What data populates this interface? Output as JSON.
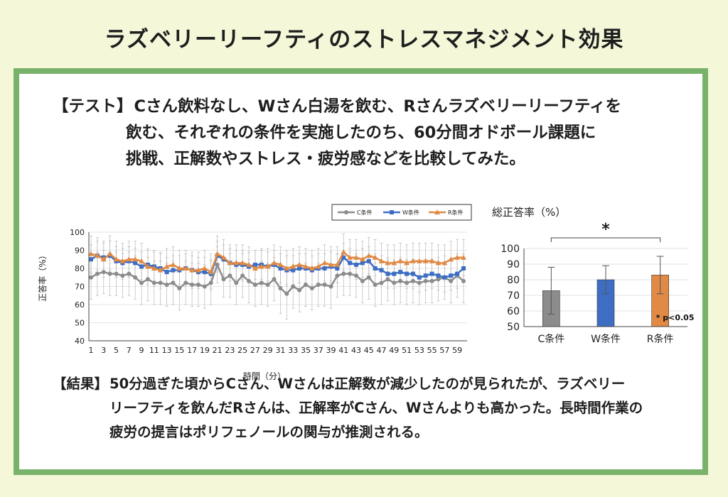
{
  "title": "ラズベリーリーフティのストレスマネジメント効果",
  "test": {
    "label": "【テスト】",
    "lines": [
      "Cさん飲料なし、Wさん白湯を飲む、Rさんラズベリーリーフティを",
      "飲む、それぞれの条件を実施したのち、60分間オドボール課題に",
      "挑戦、正解数やストレス・疲労感などを比較してみた。"
    ]
  },
  "result": {
    "label": "【結果】",
    "lines": [
      "50分過ぎた頃からCさん、Wさんは正解数が減少したのが見られたが、ラズベリー",
      "リーフティを飲んだRさんは、正解率がCさん、Wさんよりも高かった。長時間作業の",
      "疲労の提言はポリフェノールの関与が推測される。"
    ]
  },
  "colors": {
    "C": "#8c8c8c",
    "W": "#3e6ec4",
    "R": "#e08a45",
    "frame": "#79b36b",
    "background": "#f4f8d8"
  },
  "chart_data": [
    {
      "type": "line",
      "ylabel": "正答率（%）",
      "xlabel": "時間（分）",
      "ylim": [
        40,
        100
      ],
      "yticks": [
        40,
        50,
        60,
        70,
        80,
        90,
        100
      ],
      "xlim": [
        1,
        60
      ],
      "xticks": [
        1,
        3,
        5,
        7,
        9,
        11,
        13,
        15,
        17,
        19,
        21,
        23,
        25,
        27,
        29,
        31,
        33,
        35,
        37,
        39,
        41,
        43,
        45,
        47,
        49,
        51,
        53,
        55,
        57,
        59
      ],
      "legend_position": "top-right",
      "series": [
        {
          "name": "C条件",
          "key": "C",
          "values": [
            75,
            77,
            78,
            77,
            77,
            76,
            77,
            75,
            72,
            74,
            72,
            72,
            71,
            72,
            69,
            72,
            71,
            71,
            70,
            72,
            82,
            74,
            76,
            72,
            76,
            73,
            71,
            72,
            71,
            74,
            69,
            66,
            70,
            68,
            71,
            69,
            71,
            71,
            70,
            76,
            77,
            77,
            76,
            73,
            75,
            71,
            72,
            74,
            72,
            73,
            72,
            73,
            72,
            73,
            73,
            74,
            75,
            73,
            76,
            73
          ],
          "error": [
            12,
            12,
            12,
            12,
            12,
            12,
            12,
            12,
            12,
            12,
            12,
            12,
            12,
            12,
            12,
            12,
            12,
            12,
            12,
            12,
            10,
            10,
            12,
            12,
            12,
            12,
            12,
            12,
            12,
            12,
            14,
            14,
            12,
            12,
            12,
            12,
            12,
            12,
            12,
            12,
            12,
            12,
            12,
            12,
            12,
            12,
            12,
            12,
            12,
            12,
            12,
            12,
            12,
            12,
            12,
            12,
            12,
            12,
            12,
            12
          ]
        },
        {
          "name": "W条件",
          "key": "W",
          "values": [
            85,
            87,
            86,
            87,
            84,
            83,
            84,
            83,
            81,
            82,
            81,
            80,
            78,
            79,
            79,
            80,
            79,
            78,
            78,
            77,
            87,
            85,
            83,
            82,
            82,
            81,
            82,
            82,
            81,
            82,
            80,
            79,
            79,
            80,
            80,
            79,
            80,
            80,
            81,
            80,
            86,
            83,
            82,
            83,
            84,
            80,
            79,
            77,
            77,
            78,
            77,
            77,
            75,
            76,
            77,
            76,
            75,
            76,
            77,
            80
          ],
          "error": [
            8,
            8,
            8,
            8,
            8,
            8,
            8,
            8,
            8,
            8,
            8,
            8,
            8,
            8,
            8,
            8,
            8,
            8,
            8,
            8,
            8,
            8,
            8,
            8,
            8,
            8,
            8,
            8,
            8,
            8,
            8,
            8,
            8,
            8,
            8,
            8,
            8,
            8,
            8,
            8,
            8,
            8,
            8,
            8,
            8,
            8,
            8,
            8,
            8,
            8,
            8,
            8,
            8,
            8,
            8,
            8,
            8,
            8,
            8,
            8
          ]
        },
        {
          "name": "R条件",
          "key": "R",
          "values": [
            88,
            87,
            85,
            88,
            85,
            84,
            85,
            85,
            84,
            81,
            80,
            79,
            81,
            82,
            80,
            80,
            79,
            79,
            80,
            78,
            88,
            86,
            83,
            83,
            83,
            82,
            80,
            81,
            81,
            83,
            82,
            80,
            81,
            82,
            81,
            80,
            81,
            83,
            82,
            82,
            89,
            86,
            86,
            85,
            87,
            86,
            84,
            83,
            83,
            84,
            83,
            84,
            84,
            84,
            84,
            83,
            83,
            85,
            86,
            86
          ],
          "error": [
            10,
            10,
            10,
            10,
            10,
            10,
            10,
            10,
            10,
            10,
            10,
            10,
            10,
            10,
            10,
            10,
            10,
            10,
            10,
            10,
            10,
            10,
            10,
            10,
            10,
            10,
            10,
            10,
            10,
            10,
            10,
            10,
            10,
            10,
            10,
            10,
            10,
            10,
            10,
            10,
            10,
            10,
            10,
            10,
            10,
            10,
            10,
            10,
            10,
            10,
            10,
            10,
            10,
            10,
            10,
            10,
            10,
            10,
            10,
            10
          ]
        }
      ]
    },
    {
      "type": "bar",
      "title": "総正答率（%）",
      "categories": [
        "C条件",
        "W条件",
        "R条件"
      ],
      "values": [
        73,
        80,
        83
      ],
      "error": [
        15,
        9,
        12
      ],
      "ylim": [
        50,
        100
      ],
      "yticks": [
        50,
        60,
        70,
        80,
        90,
        100
      ],
      "significance_mark": "*",
      "annotation": "* p<0.05"
    }
  ]
}
